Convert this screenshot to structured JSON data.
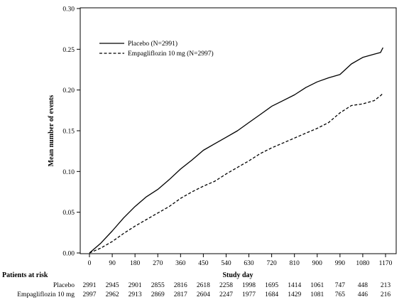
{
  "chart_data": {
    "type": "line",
    "xlabel": "Study day",
    "ylabel": "Mean number of events",
    "xlim": [
      0,
      1170
    ],
    "ylim": [
      0,
      0.3
    ],
    "x_ticks": [
      "0",
      "90",
      "180",
      "270",
      "360",
      "450",
      "540",
      "630",
      "720",
      "810",
      "900",
      "990",
      "1080",
      "1170"
    ],
    "y_ticks": [
      "0.00",
      "0.05",
      "0.10",
      "0.15",
      "0.20",
      "0.25",
      "0.30"
    ],
    "legend_position": "top-left",
    "grid": false,
    "series": [
      {
        "name": "Placebo (N=2991)",
        "style": "solid",
        "x": [
          0,
          45,
          90,
          135,
          180,
          225,
          270,
          315,
          360,
          405,
          450,
          495,
          540,
          585,
          630,
          675,
          720,
          765,
          810,
          855,
          900,
          945,
          990,
          1035,
          1080,
          1125,
          1150,
          1160
        ],
        "y": [
          0.0,
          0.012,
          0.027,
          0.043,
          0.057,
          0.069,
          0.078,
          0.09,
          0.103,
          0.114,
          0.126,
          0.134,
          0.142,
          0.15,
          0.16,
          0.17,
          0.18,
          0.187,
          0.194,
          0.203,
          0.21,
          0.215,
          0.219,
          0.232,
          0.24,
          0.244,
          0.246,
          0.252
        ]
      },
      {
        "name": "Empagliflozin 10 mg (N=2997)",
        "style": "dashed",
        "x": [
          0,
          45,
          90,
          135,
          180,
          225,
          270,
          315,
          360,
          405,
          450,
          495,
          540,
          585,
          630,
          675,
          720,
          765,
          810,
          855,
          900,
          945,
          990,
          1035,
          1080,
          1125,
          1150,
          1160
        ],
        "y": [
          0.0,
          0.006,
          0.014,
          0.024,
          0.033,
          0.041,
          0.049,
          0.057,
          0.067,
          0.075,
          0.082,
          0.088,
          0.097,
          0.105,
          0.113,
          0.122,
          0.129,
          0.135,
          0.141,
          0.147,
          0.153,
          0.16,
          0.172,
          0.181,
          0.183,
          0.187,
          0.193,
          0.196
        ]
      }
    ]
  },
  "risk_table": {
    "title": "Patients at risk",
    "rows": [
      {
        "label": "Placebo",
        "values": [
          "2991",
          "2945",
          "2901",
          "2855",
          "2816",
          "2618",
          "2258",
          "1998",
          "1695",
          "1414",
          "1061",
          "747",
          "448",
          "213"
        ]
      },
      {
        "label": "Empagliflozin 10 mg",
        "values": [
          "2997",
          "2962",
          "2913",
          "2869",
          "2817",
          "2604",
          "2247",
          "1977",
          "1684",
          "1429",
          "1081",
          "765",
          "446",
          "216"
        ]
      }
    ]
  }
}
